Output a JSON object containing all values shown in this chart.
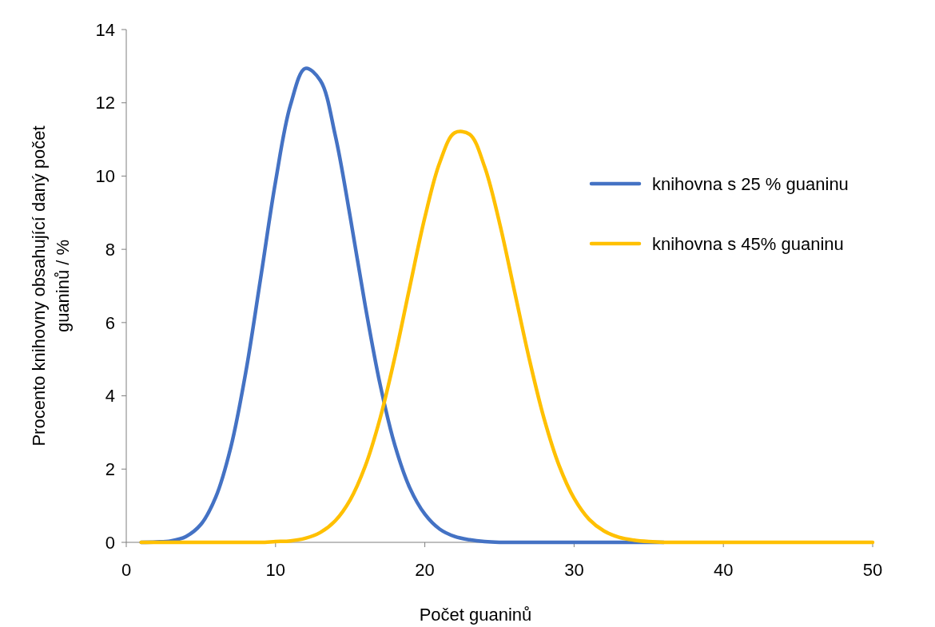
{
  "chart_data": {
    "type": "line",
    "xlabel": "Počet guaninů",
    "ylabel": "Procento knihovny obsahující daný počet guaninů / %",
    "x": [
      1,
      2,
      3,
      4,
      5,
      6,
      7,
      8,
      9,
      10,
      11,
      12,
      13,
      14,
      15,
      16,
      17,
      18,
      19,
      20,
      21,
      22,
      23,
      24,
      25,
      26,
      27,
      28,
      29,
      30,
      31,
      32,
      33,
      34,
      35,
      36,
      37,
      38,
      39,
      40,
      41,
      42,
      43,
      44,
      45,
      46,
      47,
      48,
      49,
      50
    ],
    "xlim": [
      0,
      50
    ],
    "xticks": [
      0,
      10,
      20,
      30,
      40,
      50
    ],
    "ylim": [
      0,
      14
    ],
    "yticks": [
      0,
      2,
      4,
      6,
      8,
      10,
      12,
      14
    ],
    "grid": false,
    "legend": "right",
    "marker": "none",
    "line_style": "solid",
    "series": [
      {
        "name": "knihovna s 25 % guaninu",
        "color": "#4472c4",
        "values": [
          0,
          0.01,
          0.04,
          0.16,
          0.49,
          1.24,
          2.59,
          4.63,
          7.21,
          9.85,
          11.94,
          12.94,
          12.61,
          11.11,
          8.89,
          6.48,
          4.32,
          2.64,
          1.48,
          0.77,
          0.36,
          0.16,
          0.07,
          0.02,
          0,
          0,
          0,
          0,
          0,
          0,
          0,
          0,
          0,
          0,
          0,
          0,
          null,
          null,
          null,
          null,
          null,
          null,
          null,
          null,
          null,
          null,
          null,
          null,
          null,
          null
        ]
      },
      {
        "name": "knihovna s 45% guaninu",
        "color": "#ffc000",
        "values": [
          0,
          0,
          0,
          0,
          0,
          0,
          0,
          0,
          0,
          0.02,
          0.04,
          0.11,
          0.27,
          0.59,
          1.16,
          2.07,
          3.38,
          5.07,
          6.99,
          8.87,
          10.37,
          11.18,
          11.14,
          10.26,
          8.73,
          6.87,
          5.0,
          3.36,
          2.09,
          1.2,
          0.63,
          0.31,
          0.14,
          0.06,
          0.02,
          0,
          0,
          0,
          0,
          0,
          0,
          0,
          0,
          0,
          0,
          0,
          0,
          0,
          0,
          0
        ]
      }
    ]
  }
}
